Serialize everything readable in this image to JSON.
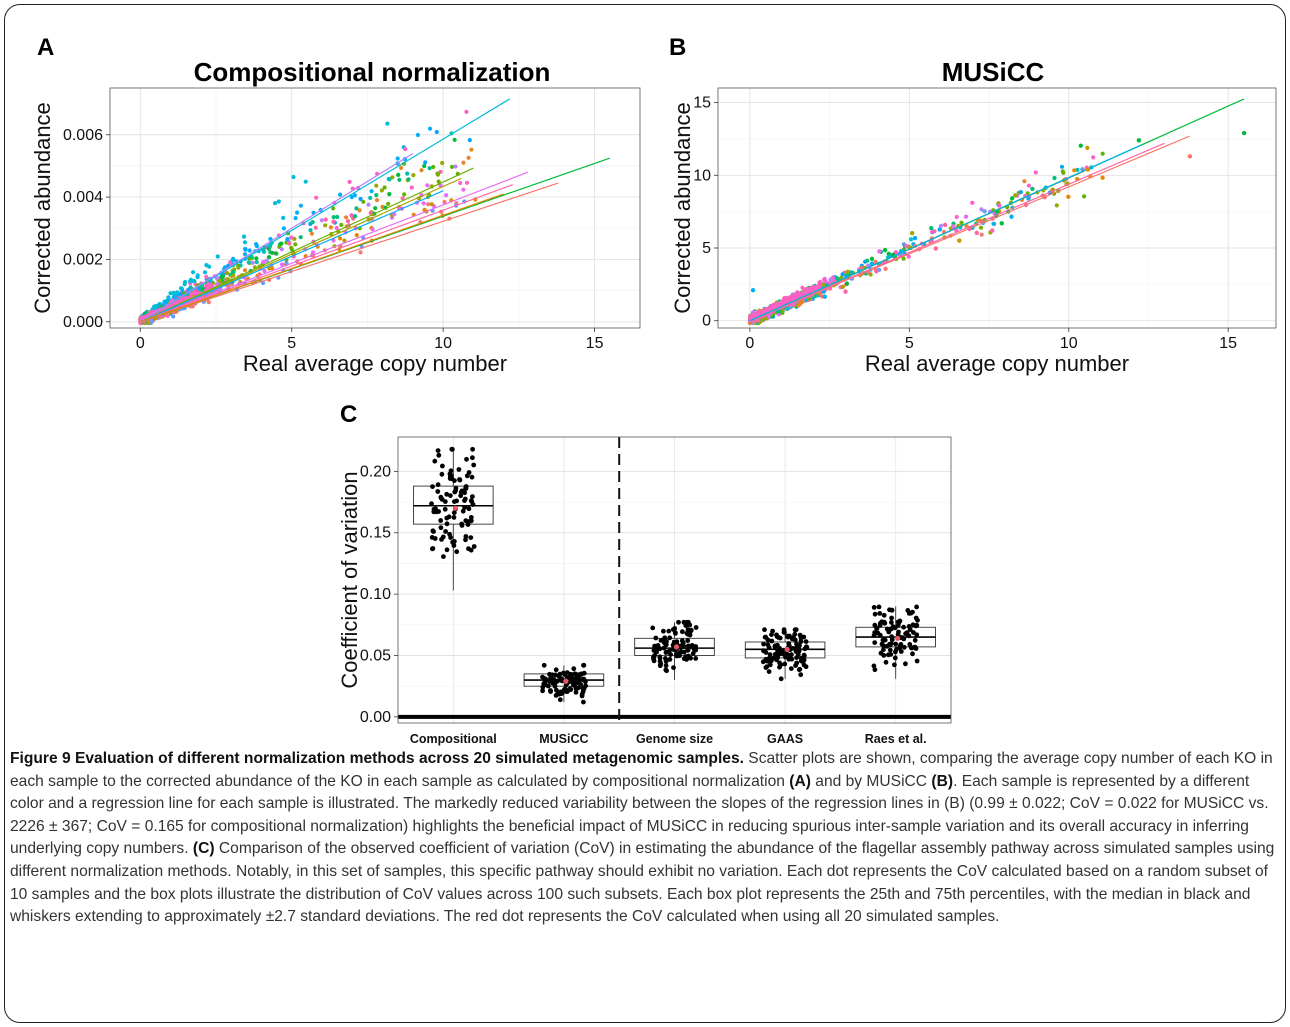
{
  "panels": {
    "A": {
      "letter": "A",
      "title": "Compositional normalization"
    },
    "B": {
      "letter": "B",
      "title": "MUSiCC"
    },
    "C": {
      "letter": "C"
    }
  },
  "caption": {
    "title": "Figure 9 Evaluation of different normalization methods across 20 simulated metagenomic samples.",
    "p1": " Scatter plots are shown, comparing the average copy number of each KO in each sample to the corrected abundance of the KO in each sample as calculated by compositional normalization ",
    "a_ref": "(A)",
    "p2": " and by MUSiCC ",
    "b_ref": "(B)",
    "p3": ". Each sample is represented by a different color and a regression line for each sample is illustrated. The markedly reduced variability between the slopes of the regression lines in (B) (0.99 ± 0.022; CoV = 0.022 for MUSiCC vs. 2226 ± 367; CoV = 0.165 for compositional normalization) highlights the beneficial impact of MUSiCC in reducing spurious inter-sample variation and its overall accuracy in inferring underlying copy numbers. ",
    "c_ref": "(C)",
    "p4": " Comparison of the observed coefficient of variation (CoV) in estimating the abundance of the flagellar assembly pathway across simulated samples using different normalization methods. Notably, in this set of samples, this specific pathway should exhibit no variation. Each dot represents the CoV calculated based on a random subset of 10 samples and the box plots illustrate the distribution of CoV values across 100 such subsets. Each box plot represents the 25th and 75th percentiles, with the median in black and whiskers extending to approximately ±2.7 standard deviations. The red dot represents the CoV calculated when using all 20 simulated samples."
  },
  "chart_data": [
    {
      "type": "scatter",
      "panel": "A",
      "title": "Compositional normalization",
      "xlabel": "Real average copy number",
      "ylabel": "Corrected abundance",
      "xlim": [
        -1,
        16.5
      ],
      "ylim": [
        -0.0002,
        0.0075
      ],
      "xticks": [
        0,
        5,
        10,
        15
      ],
      "xtick_labels": [
        "0",
        "5",
        "10",
        "15"
      ],
      "yticks": [
        0,
        0.002,
        0.004,
        0.006
      ],
      "ytick_labels": [
        "0.000",
        "0.002",
        "0.004",
        "0.006"
      ],
      "grid": true,
      "series_colors": [
        "#F8766D",
        "#E58700",
        "#C99800",
        "#A3A500",
        "#6BB100",
        "#00BA38",
        "#00BF7D",
        "#00C0AF",
        "#00BCD8",
        "#00B0F6",
        "#619CFF",
        "#B983FF",
        "#E76BF3",
        "#FD61D1",
        "#FF67A4",
        "#E88526",
        "#93AA00",
        "#5EB300",
        "#00A5FF",
        "#FF61C3"
      ],
      "regression_lines": [
        {
          "color": "#00BCD8",
          "x1": 0,
          "y1": 0,
          "x2": 12.2,
          "y2": 0.00715
        },
        {
          "color": "#B983FF",
          "x1": 0,
          "y1": 0,
          "x2": 9.0,
          "y2": 0.0054
        },
        {
          "color": "#6BB100",
          "x1": 0,
          "y1": 0,
          "x2": 11.0,
          "y2": 0.00493
        },
        {
          "color": "#A3A500",
          "x1": 0,
          "y1": 0,
          "x2": 10.6,
          "y2": 0.0046
        },
        {
          "color": "#00B0F6",
          "x1": 0,
          "y1": 0,
          "x2": 10.0,
          "y2": 0.0042
        },
        {
          "color": "#E76BF3",
          "x1": 0,
          "y1": 0,
          "x2": 12.8,
          "y2": 0.0048
        },
        {
          "color": "#FF67A4",
          "x1": 0,
          "y1": 0,
          "x2": 12.3,
          "y2": 0.0044
        },
        {
          "color": "#F8766D",
          "x1": 0,
          "y1": 0,
          "x2": 13.8,
          "y2": 0.00445
        },
        {
          "color": "#00BA38",
          "x1": 0,
          "y1": 0,
          "x2": 15.5,
          "y2": 0.00525
        },
        {
          "color": "#E58700",
          "x1": 0,
          "y1": 0,
          "x2": 12.0,
          "y2": 0.0041
        }
      ]
    },
    {
      "type": "scatter",
      "panel": "B",
      "title": "MUSiCC",
      "xlabel": "Real average copy number",
      "ylabel": "Corrected abundance",
      "xlim": [
        -1,
        16.5
      ],
      "ylim": [
        -0.5,
        16.0
      ],
      "xticks": [
        0,
        5,
        10,
        15
      ],
      "xtick_labels": [
        "0",
        "5",
        "10",
        "15"
      ],
      "yticks": [
        0,
        5,
        10,
        15
      ],
      "ytick_labels": [
        "0",
        "5",
        "10",
        "15"
      ],
      "grid": true,
      "regression_lines": [
        {
          "color": "#00BA38",
          "x1": 0,
          "y1": 0,
          "x2": 15.5,
          "y2": 15.25
        },
        {
          "color": "#F8766D",
          "x1": 0,
          "y1": 0,
          "x2": 13.8,
          "y2": 12.7
        },
        {
          "color": "#FF67A4",
          "x1": 0,
          "y1": 0,
          "x2": 13.0,
          "y2": 12.2
        },
        {
          "color": "#A3A500",
          "x1": 0,
          "y1": 0,
          "x2": 10.5,
          "y2": 10.3
        },
        {
          "color": "#00B0F6",
          "x1": 0,
          "y1": 0,
          "x2": 12.3,
          "y2": 12.1
        }
      ],
      "outliers": [
        {
          "x": 15.5,
          "y": 12.9,
          "color": "#00BA38"
        },
        {
          "x": 13.8,
          "y": 11.3,
          "color": "#F8766D"
        },
        {
          "x": 12.2,
          "y": 12.4,
          "color": "#00BA38"
        },
        {
          "x": 10.6,
          "y": 10.4,
          "color": "#E58700"
        },
        {
          "x": 7.9,
          "y": 6.7,
          "color": "#00BA38"
        },
        {
          "x": 7.6,
          "y": 6.2,
          "color": "#FF67A4"
        },
        {
          "x": 3.0,
          "y": 2.0,
          "color": "#FF67A4"
        },
        {
          "x": 0.1,
          "y": 2.1,
          "color": "#00B0F6"
        }
      ]
    },
    {
      "type": "box",
      "panel": "C",
      "ylabel": "Coefficient of variation",
      "ylim": [
        -0.005,
        0.228
      ],
      "yticks": [
        0,
        0.05,
        0.1,
        0.15,
        0.2
      ],
      "ytick_labels": [
        "0.00",
        "0.05",
        "0.10",
        "0.15",
        "0.20"
      ],
      "categories": [
        "Compositional",
        "MUSiCC",
        "Genome size",
        "GAAS",
        "Raes et al."
      ],
      "boxes": [
        {
          "name": "Compositional",
          "q1": 0.157,
          "median": 0.172,
          "q3": 0.188,
          "whisker_low": 0.103,
          "whisker_high": 0.218,
          "full_sample": 0.17
        },
        {
          "name": "MUSiCC",
          "q1": 0.025,
          "median": 0.03,
          "q3": 0.035,
          "whisker_low": 0.012,
          "whisker_high": 0.042,
          "full_sample": 0.029
        },
        {
          "name": "Genome size",
          "q1": 0.05,
          "median": 0.056,
          "q3": 0.064,
          "whisker_low": 0.03,
          "whisker_high": 0.077,
          "full_sample": 0.057
        },
        {
          "name": "GAAS",
          "q1": 0.048,
          "median": 0.055,
          "q3": 0.061,
          "whisker_low": 0.031,
          "whisker_high": 0.071,
          "full_sample": 0.055
        },
        {
          "name": "Raes et al.",
          "q1": 0.057,
          "median": 0.065,
          "q3": 0.073,
          "whisker_low": 0.031,
          "whisker_high": 0.09,
          "full_sample": 0.064
        }
      ],
      "points_per_box": 100,
      "separator_after_category": 2,
      "grid": true
    }
  ]
}
